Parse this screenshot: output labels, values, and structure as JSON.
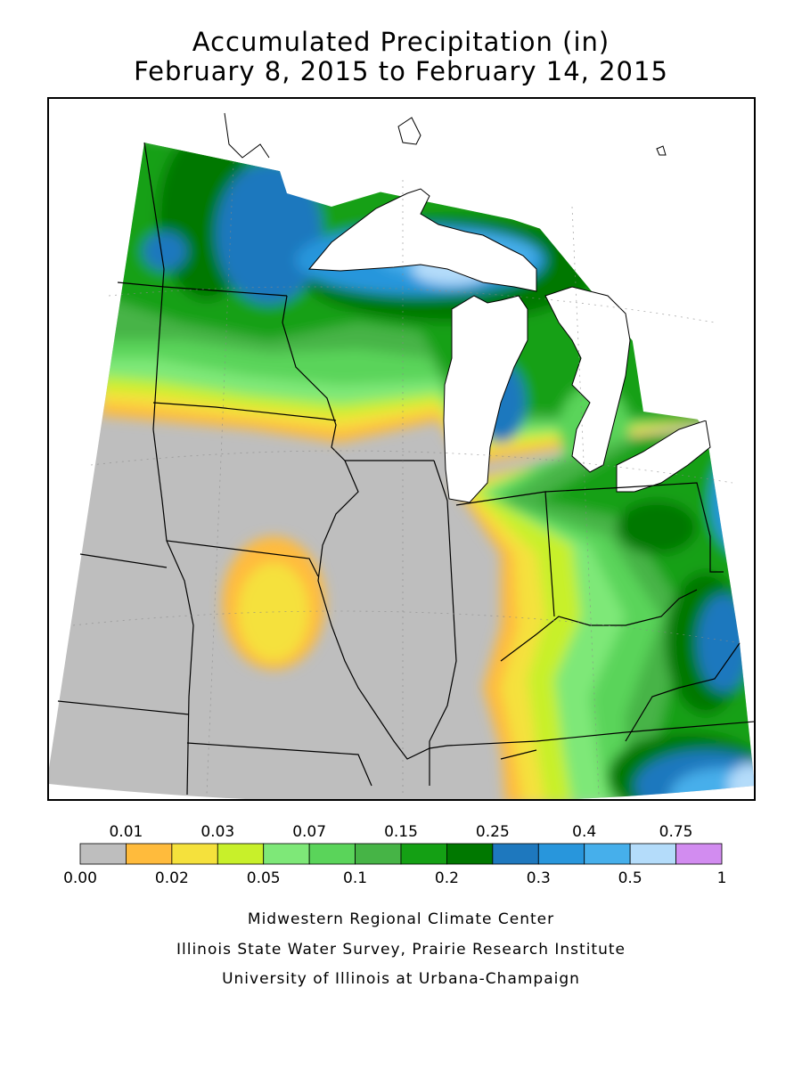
{
  "title_line1": "Accumulated Precipitation (in)",
  "title_line2": "February 8, 2015 to February 14, 2015",
  "legend": {
    "bins": [
      {
        "color": "#bebebe"
      },
      {
        "color": "#ffbb3c"
      },
      {
        "color": "#f5e13c"
      },
      {
        "color": "#c8f02a"
      },
      {
        "color": "#7ee878"
      },
      {
        "color": "#5ad45a"
      },
      {
        "color": "#46b446"
      },
      {
        "color": "#14a014"
      },
      {
        "color": "#007800"
      },
      {
        "color": "#1e78be"
      },
      {
        "color": "#2896dc"
      },
      {
        "color": "#46afeb"
      },
      {
        "color": "#b4dcfa"
      },
      {
        "color": "#d28cf0"
      }
    ],
    "top_labels": [
      "0.01",
      "0.03",
      "0.07",
      "0.15",
      "0.25",
      "0.4",
      "0.75"
    ],
    "bottom_labels": [
      "0.00",
      "0.02",
      "0.05",
      "0.1",
      "0.2",
      "0.3",
      "0.5",
      "1"
    ]
  },
  "credits": {
    "line1": "Midwestern Regional Climate Center",
    "line2": "Illinois State Water Survey, Prairie Research Institute",
    "line3": "University of Illinois at Urbana-Champaign"
  }
}
